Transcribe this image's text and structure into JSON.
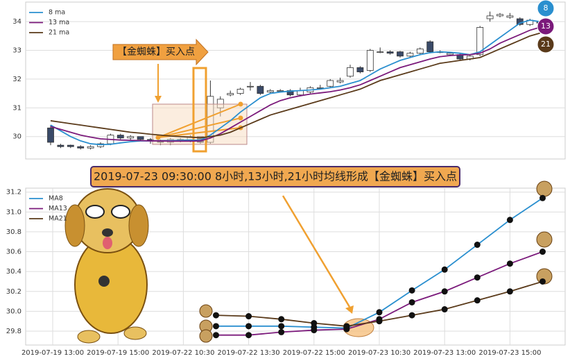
{
  "chart_data": [
    {
      "type": "candlestick",
      "annotation": "【金蜘蛛】买入点",
      "badges": [
        "8",
        "13",
        "21"
      ],
      "open": [
        30.3,
        29.7,
        29.7,
        29.65,
        29.6,
        29.65,
        29.75,
        30.05,
        29.95,
        30.0,
        29.9,
        29.85,
        29.8,
        29.9,
        29.85,
        30.0,
        29.8,
        31.0,
        31.45,
        31.5,
        31.75,
        31.75,
        31.55,
        31.6,
        31.6,
        31.45,
        31.55,
        31.7,
        31.75,
        31.9,
        32.1,
        32.4,
        32.3,
        32.95,
        32.95,
        32.95,
        32.8,
        32.9,
        33.3,
        32.95,
        32.85,
        32.85,
        32.7,
        32.85,
        34.1,
        34.2,
        34.15,
        34.1,
        33.9,
        34.0
      ],
      "high": [
        30.4,
        29.75,
        29.72,
        29.7,
        29.7,
        29.8,
        30.1,
        30.1,
        30.05,
        30.0,
        29.95,
        29.9,
        29.95,
        29.95,
        30.05,
        30.0,
        31.95,
        31.4,
        31.6,
        31.7,
        31.9,
        31.8,
        31.65,
        31.65,
        31.65,
        31.7,
        31.75,
        31.8,
        32.0,
        32.05,
        32.5,
        32.45,
        33.05,
        33.1,
        33.0,
        32.98,
        32.95,
        33.1,
        33.35,
        33.0,
        32.95,
        32.9,
        32.85,
        33.85,
        34.35,
        34.3,
        34.3,
        34.15,
        34.1,
        34.05
      ],
      "low": [
        29.7,
        29.6,
        29.6,
        29.55,
        29.55,
        29.6,
        29.7,
        29.9,
        29.85,
        29.85,
        29.75,
        29.7,
        29.7,
        29.8,
        29.8,
        29.75,
        29.75,
        30.7,
        31.4,
        31.45,
        31.6,
        31.45,
        31.5,
        31.55,
        31.4,
        31.4,
        31.5,
        31.65,
        31.7,
        31.85,
        32.05,
        32.2,
        32.25,
        32.9,
        32.85,
        32.75,
        32.75,
        32.85,
        32.9,
        32.9,
        32.8,
        32.65,
        32.65,
        32.8,
        34.0,
        34.15,
        34.1,
        33.85,
        33.85,
        33.9
      ],
      "close": [
        29.8,
        29.65,
        29.65,
        29.6,
        29.65,
        29.75,
        30.05,
        29.95,
        30.0,
        29.9,
        29.85,
        29.8,
        29.9,
        29.85,
        30.0,
        29.8,
        31.4,
        31.3,
        31.5,
        31.65,
        31.75,
        31.5,
        31.6,
        31.6,
        31.45,
        31.6,
        31.7,
        31.7,
        31.95,
        31.95,
        32.4,
        32.25,
        33.0,
        32.95,
        32.9,
        32.8,
        32.9,
        33.05,
        32.95,
        32.95,
        32.9,
        32.7,
        32.8,
        33.8,
        34.2,
        34.25,
        34.2,
        33.9,
        34.05,
        33.95
      ],
      "series": [
        {
          "name": "8 ma",
          "color": "#2a8fcf",
          "values": [
            30.4,
            30.2,
            30.0,
            29.85,
            29.75,
            29.72,
            29.73,
            29.78,
            29.82,
            29.85,
            29.85,
            29.86,
            29.86,
            29.87,
            29.88,
            29.87,
            30.05,
            30.3,
            30.55,
            30.85,
            31.1,
            31.35,
            31.5,
            31.55,
            31.58,
            31.6,
            31.62,
            31.65,
            31.7,
            31.75,
            31.85,
            31.95,
            32.15,
            32.35,
            32.5,
            32.65,
            32.75,
            32.85,
            32.92,
            32.95,
            32.93,
            32.9,
            32.85,
            32.95,
            33.2,
            33.45,
            33.7,
            33.95,
            34.05,
            34.0
          ]
        },
        {
          "name": "13 ma",
          "color": "#7b1a7b",
          "values": [
            30.35,
            30.25,
            30.15,
            30.05,
            29.98,
            29.92,
            29.9,
            29.88,
            29.87,
            29.86,
            29.85,
            29.85,
            29.84,
            29.84,
            29.84,
            29.85,
            29.95,
            30.1,
            30.3,
            30.5,
            30.7,
            30.9,
            31.1,
            31.25,
            31.35,
            31.42,
            31.48,
            31.52,
            31.56,
            31.62,
            31.7,
            31.8,
            31.95,
            32.1,
            32.25,
            32.4,
            32.5,
            32.6,
            32.7,
            32.78,
            32.82,
            32.84,
            32.85,
            32.9,
            33.05,
            33.25,
            33.4,
            33.55,
            33.7,
            33.8
          ]
        },
        {
          "name": "21 ma",
          "color": "#5a3a1a",
          "values": [
            30.55,
            30.5,
            30.45,
            30.4,
            30.35,
            30.3,
            30.25,
            30.2,
            30.15,
            30.12,
            30.08,
            30.05,
            30.02,
            30.0,
            29.98,
            29.96,
            30.0,
            30.05,
            30.15,
            30.3,
            30.45,
            30.6,
            30.75,
            30.85,
            30.95,
            31.05,
            31.15,
            31.25,
            31.35,
            31.45,
            31.55,
            31.65,
            31.8,
            31.95,
            32.05,
            32.15,
            32.25,
            32.35,
            32.45,
            32.55,
            32.6,
            32.65,
            32.7,
            32.75,
            32.9,
            33.05,
            33.2,
            33.35,
            33.5,
            33.6
          ]
        }
      ],
      "ylim": [
        29.22,
        34.68
      ],
      "yticks": [
        30,
        31,
        32,
        33,
        34
      ],
      "grid": true,
      "legend": "upper left"
    },
    {
      "type": "line",
      "title": "2019-07-23 09:30:00 8小时,13小时,21小时均线形成【金蜘蛛】买入点",
      "categories": [
        "2019-07-19 13:00",
        null,
        "2019-07-19 15:00",
        null,
        "2019-07-22 10:30",
        null,
        "2019-07-22 13:30",
        null,
        "2019-07-22 15:00",
        null,
        "2019-07-23 10:30",
        null,
        "2019-07-23 13:00",
        null,
        "2019-07-23 15:00",
        null
      ],
      "series": [
        {
          "name": "MA8",
          "color": "#2a8fcf",
          "values": [
            null,
            null,
            null,
            null,
            null,
            29.85,
            29.85,
            29.85,
            29.84,
            29.83,
            29.99,
            30.21,
            30.42,
            30.67,
            30.92,
            31.14
          ]
        },
        {
          "name": "MA13",
          "color": "#7b1a7b",
          "values": [
            null,
            null,
            null,
            null,
            null,
            29.76,
            29.76,
            29.79,
            29.81,
            29.82,
            29.92,
            30.09,
            30.2,
            30.34,
            30.48,
            30.6
          ]
        },
        {
          "name": "MA21",
          "color": "#5a3a1a",
          "values": [
            null,
            null,
            null,
            null,
            null,
            29.96,
            29.95,
            29.92,
            29.88,
            29.85,
            29.9,
            29.96,
            30.02,
            30.11,
            30.2,
            30.3
          ]
        }
      ],
      "ylim": [
        29.66,
        31.24
      ],
      "yticks": [
        29.8,
        {
          "value": 30,
          "label": "30.0"
        },
        30.2,
        30.4,
        30.6,
        30.8,
        {
          "value": 31,
          "label": "31.0"
        },
        31.2
      ],
      "grid": true,
      "legend": "upper left"
    }
  ]
}
